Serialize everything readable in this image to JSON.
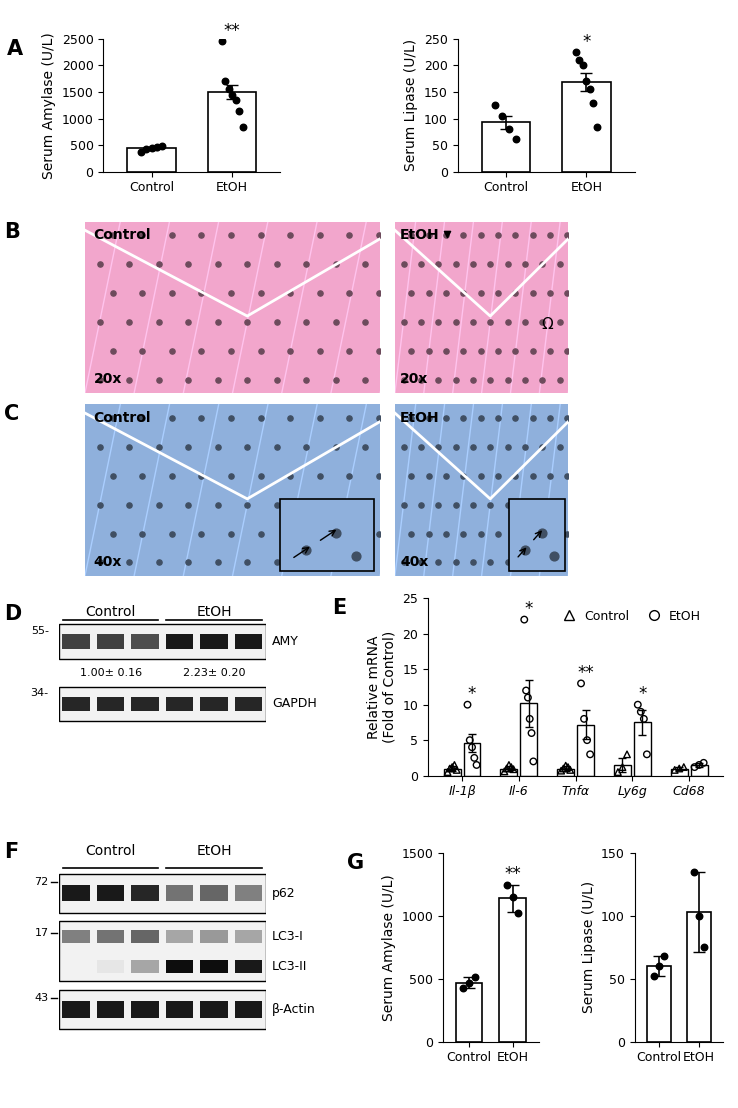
{
  "chart_data": [
    {
      "panel": "A",
      "type": "bar",
      "y_label": "Serum Amylase (U/L)",
      "categories": [
        "Control",
        "EtOH"
      ],
      "values": [
        440,
        1500
      ],
      "error": [
        25,
        130
      ],
      "points": [
        [
          380,
          420,
          450,
          470,
          480
        ],
        [
          2450,
          1700,
          1550,
          1450,
          1350,
          1150,
          850
        ]
      ],
      "significance": [
        null,
        "**"
      ],
      "ylim": [
        0,
        2500
      ],
      "yticks": [
        0,
        500,
        1000,
        1500,
        2000,
        2500
      ],
      "color": "#ffffff",
      "marker": "circle"
    },
    {
      "panel": "A",
      "type": "bar",
      "y_label": "Serum Lipase (U/L)",
      "categories": [
        "Control",
        "EtOH"
      ],
      "values": [
        93,
        168
      ],
      "error": [
        12,
        17
      ],
      "points": [
        [
          125,
          105,
          80,
          62
        ],
        [
          225,
          210,
          200,
          170,
          155,
          130,
          85
        ]
      ],
      "significance": [
        null,
        "*"
      ],
      "ylim": [
        0,
        250
      ],
      "yticks": [
        0,
        50,
        100,
        150,
        200,
        250
      ],
      "color": "#ffffff",
      "marker": "circle"
    },
    {
      "panel": "E",
      "type": "grouped_bar",
      "y_label": "Relative mRNA\n(Fold of Control)",
      "categories": [
        "Il-1β",
        "Il-6",
        "Tnfα",
        "Ly6g",
        "Cd68"
      ],
      "series": [
        {
          "name": "Control",
          "marker": "triangle",
          "color": "#ffffff",
          "values": [
            1.0,
            1.0,
            1.0,
            1.5,
            1.0
          ],
          "error": [
            0.3,
            0.3,
            0.3,
            1.0,
            0.2
          ],
          "points": [
            [
              0.5,
              1.0,
              1.2,
              1.5,
              0.8
            ],
            [
              0.6,
              1.0,
              1.5,
              1.2,
              0.9
            ],
            [
              0.7,
              1.0,
              1.4,
              1.2,
              0.8
            ],
            [
              0.5,
              1.2,
              3.0
            ],
            [
              0.8,
              1.0,
              1.2
            ]
          ],
          "significance": [
            null,
            null,
            null,
            null,
            null
          ]
        },
        {
          "name": "EtOH",
          "marker": "circle",
          "color": "#ffffff",
          "values": [
            4.6,
            10.2,
            7.2,
            7.5,
            1.5
          ],
          "error": [
            1.3,
            3.3,
            2.0,
            1.8,
            0.3
          ],
          "points": [
            [
              10,
              5,
              4,
              2.5,
              1.5
            ],
            [
              22,
              12,
              11,
              8,
              6,
              2
            ],
            [
              13,
              8,
              5,
              3
            ],
            [
              10,
              9,
              8,
              3
            ],
            [
              1.2,
              1.5,
              1.8
            ]
          ],
          "significance": [
            "*",
            "*",
            "**",
            "*",
            null
          ]
        }
      ],
      "ylim": [
        0,
        25
      ],
      "yticks": [
        0,
        5,
        10,
        15,
        20,
        25
      ],
      "legend": "upper center"
    },
    {
      "panel": "G",
      "type": "bar",
      "y_label": "Serum Amylase (U/L)",
      "categories": [
        "Control",
        "EtOH"
      ],
      "values": [
        470,
        1140
      ],
      "error": [
        40,
        110
      ],
      "points": [
        [
          430,
          470,
          510
        ],
        [
          1250,
          1150,
          1020
        ]
      ],
      "significance": [
        null,
        "**"
      ],
      "ylim": [
        0,
        1500
      ],
      "yticks": [
        0,
        500,
        1000,
        1500
      ],
      "color": "#ffffff",
      "marker": "circle"
    },
    {
      "panel": "G",
      "type": "bar",
      "y_label": "Serum Lipase (U/L)",
      "categories": [
        "Control",
        "EtOH"
      ],
      "values": [
        60,
        103
      ],
      "error": [
        8,
        32
      ],
      "points": [
        [
          52,
          60,
          68
        ],
        [
          135,
          100,
          75
        ]
      ],
      "significance": [
        null,
        null
      ],
      "ylim": [
        0,
        150
      ],
      "yticks": [
        0,
        50,
        100,
        150
      ],
      "color": "#ffffff",
      "marker": "circle"
    }
  ],
  "images": [
    {
      "panel": "B",
      "color": "#f2a6cc",
      "frames": [
        {
          "label": "Control",
          "magnification": "20x"
        },
        {
          "label": "EtOH",
          "magnification": "20x",
          "symbol": "Ω"
        }
      ]
    },
    {
      "panel": "C",
      "color": "#8fb0dc",
      "frames": [
        {
          "label": "Control",
          "magnification": "40x",
          "inset": true
        },
        {
          "label": "EtOH",
          "magnification": "40x",
          "inset": true
        }
      ]
    }
  ],
  "blots": [
    {
      "panel": "D",
      "groups": [
        "Control",
        "EtOH"
      ],
      "boxes": [
        {
          "mw": "55-",
          "bands": [
            {
              "label": "AMY",
              "band_intensity": [
                0.75,
                0.75,
                0.7,
                0.9,
                0.9,
                0.9
              ]
            }
          ],
          "quantification": [
            "1.00± 0.16",
            "2.23± 0.20"
          ]
        },
        {
          "mw": "34-",
          "bands": [
            {
              "label": "GAPDH",
              "band_intensity": [
                0.85,
                0.85,
                0.85,
                0.85,
                0.85,
                0.85
              ]
            }
          ]
        }
      ]
    },
    {
      "panel": "F",
      "groups": [
        "Control",
        "EtOH"
      ],
      "boxes": [
        {
          "mw": "72",
          "bands": [
            {
              "label": "p62",
              "band_intensity": [
                0.9,
                0.9,
                0.85,
                0.55,
                0.6,
                0.5
              ]
            }
          ]
        },
        {
          "mw": "17",
          "bands": [
            {
              "label": "LC3-I",
              "band_intensity": [
                0.5,
                0.55,
                0.6,
                0.35,
                0.4,
                0.35
              ]
            },
            {
              "label": "LC3-II",
              "band_intensity": [
                0,
                0.1,
                0.35,
                0.95,
                0.95,
                0.9
              ]
            }
          ]
        },
        {
          "mw": "43",
          "bands": [
            {
              "label": "β-Actin",
              "band_intensity": [
                0.9,
                0.9,
                0.9,
                0.9,
                0.9,
                0.9
              ]
            }
          ]
        }
      ]
    }
  ]
}
